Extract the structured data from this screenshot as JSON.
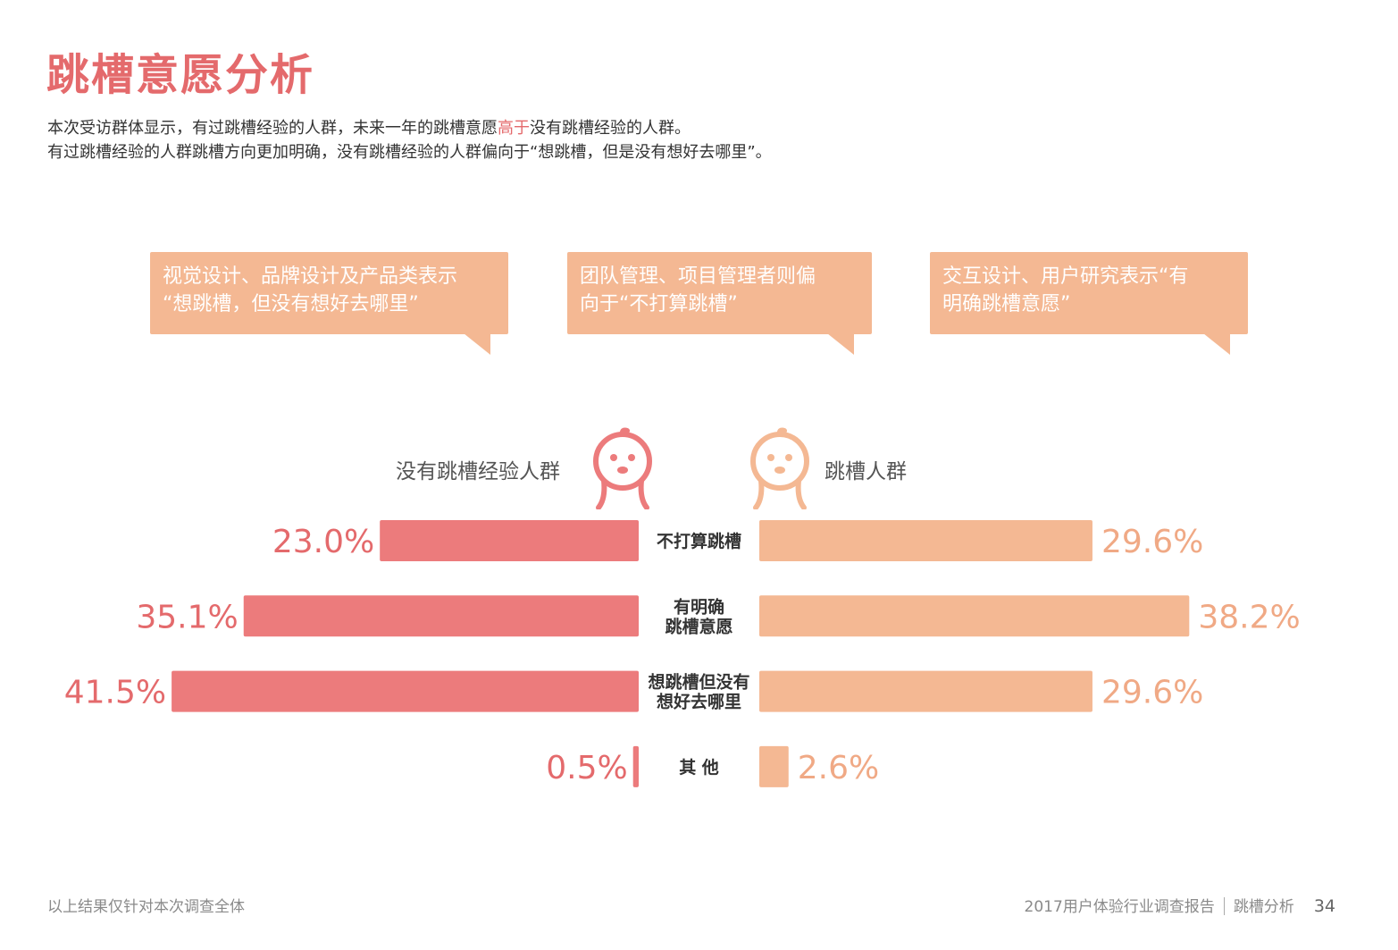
{
  "page": {
    "title": "跳槽意愿分析",
    "intro_line1_a": "本次受访群体显示，有过跳槽经验的人群，未来一年的跳槽意愿",
    "intro_line1_highlight": "高于",
    "intro_line1_b": "没有跳槽经验的人群。",
    "intro_line2": "有过跳槽经验的人群跳槽方向更加明确，没有跳槽经验的人群偏向于“想跳槽，但是没有想好去哪里”。"
  },
  "bubbles": [
    {
      "line1": "视觉设计、品牌设计及产品类表示",
      "line2": "“想跳槽，但没有想好去哪里”"
    },
    {
      "line1": "团队管理、项目管理者则偏",
      "line2": "向于“不打算跳槽”"
    },
    {
      "line1": "交互设计、用户研究表示“有",
      "line2": "明确跳槽意愿”"
    }
  ],
  "chart_data": {
    "type": "bar",
    "orientation": "diverging-horizontal",
    "categories": [
      [
        "不打算跳槽"
      ],
      [
        "有明确",
        "跳槽意愿"
      ],
      [
        "想跳槽但没有",
        "想好去哪里"
      ],
      [
        "其 他"
      ]
    ],
    "series": [
      {
        "name": "没有跳槽经验人群",
        "side": "left",
        "color": "#ec7b7c",
        "label_color": "#e46a6c",
        "values": [
          23.0,
          35.1,
          41.5,
          0.5
        ],
        "labels": [
          "23.0%",
          "35.1%",
          "41.5%",
          "0.5%"
        ]
      },
      {
        "name": "跳槽人群",
        "side": "right",
        "color": "#f4b893",
        "label_color": "#f0a985",
        "values": [
          29.6,
          38.2,
          29.6,
          2.6
        ],
        "labels": [
          "29.6%",
          "38.2%",
          "29.6%",
          "2.6%"
        ]
      }
    ],
    "unit": "%"
  },
  "icons": {
    "left_face": "face-icon",
    "right_face": "face-icon"
  },
  "colors": {
    "accent": "#e46a6c",
    "left_bar": "#ec7b7c",
    "right_bar": "#f4b893"
  },
  "footer": {
    "note": "以上结果仅针对本次调查全体",
    "report": "2017用户体验行业调查报告",
    "section": "跳槽分析",
    "page_number": "34"
  }
}
